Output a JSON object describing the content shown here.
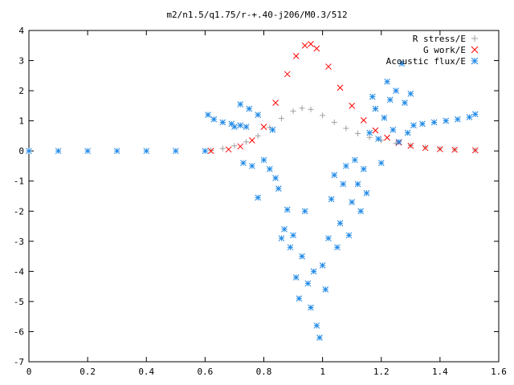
{
  "chart_data": {
    "type": "scatter",
    "title": "m2/n1.5/q1.75/r-+.40-j206/M0.3/512",
    "xlabel": "",
    "ylabel": "",
    "xlim": [
      0,
      1.6
    ],
    "ylim": [
      -7,
      4
    ],
    "grid": false,
    "legend_position": "top-right",
    "x_ticks": [
      "0",
      "0.2",
      "0.4",
      "0.6",
      "0.8",
      "1",
      "1.2",
      "1.4",
      "1.6"
    ],
    "y_ticks": [
      "4",
      "3",
      "2",
      "1",
      "0",
      "-1",
      "-2",
      "-3",
      "-4",
      "-5",
      "-6",
      "-7"
    ],
    "series": [
      {
        "name": "R stress/E",
        "marker": "plus",
        "color": "#a0a0a0",
        "points": [
          [
            0.62,
            0.02
          ],
          [
            0.66,
            0.08
          ],
          [
            0.7,
            0.17
          ],
          [
            0.74,
            0.3
          ],
          [
            0.78,
            0.5
          ],
          [
            0.82,
            0.78
          ],
          [
            0.86,
            1.08
          ],
          [
            0.9,
            1.32
          ],
          [
            0.93,
            1.42
          ],
          [
            0.96,
            1.38
          ],
          [
            1.0,
            1.18
          ],
          [
            1.04,
            0.95
          ],
          [
            1.08,
            0.75
          ],
          [
            1.12,
            0.58
          ],
          [
            1.16,
            0.45
          ],
          [
            1.2,
            0.35
          ],
          [
            1.25,
            0.25
          ],
          [
            1.3,
            0.18
          ],
          [
            1.35,
            0.12
          ],
          [
            1.4,
            0.08
          ],
          [
            1.45,
            0.05
          ],
          [
            1.52,
            0.03
          ]
        ]
      },
      {
        "name": "G work/E",
        "marker": "cross",
        "color": "#ff0000",
        "points": [
          [
            0.62,
            0.0
          ],
          [
            0.68,
            0.05
          ],
          [
            0.72,
            0.15
          ],
          [
            0.76,
            0.35
          ],
          [
            0.8,
            0.8
          ],
          [
            0.84,
            1.6
          ],
          [
            0.88,
            2.55
          ],
          [
            0.91,
            3.15
          ],
          [
            0.94,
            3.5
          ],
          [
            0.96,
            3.55
          ],
          [
            0.98,
            3.4
          ],
          [
            1.02,
            2.8
          ],
          [
            1.06,
            2.1
          ],
          [
            1.1,
            1.5
          ],
          [
            1.14,
            1.02
          ],
          [
            1.18,
            0.68
          ],
          [
            1.22,
            0.44
          ],
          [
            1.26,
            0.28
          ],
          [
            1.3,
            0.17
          ],
          [
            1.35,
            0.1
          ],
          [
            1.4,
            0.06
          ],
          [
            1.45,
            0.04
          ],
          [
            1.52,
            0.02
          ]
        ]
      },
      {
        "name": "Acoustic flux/E",
        "marker": "star",
        "color": "#1e88e5",
        "points": [
          [
            0.0,
            0.0
          ],
          [
            0.1,
            0.0
          ],
          [
            0.2,
            0.0
          ],
          [
            0.3,
            0.0
          ],
          [
            0.4,
            0.0
          ],
          [
            0.5,
            0.0
          ],
          [
            0.6,
            0.0
          ],
          [
            0.61,
            1.2
          ],
          [
            0.63,
            1.05
          ],
          [
            0.66,
            0.95
          ],
          [
            0.69,
            0.9
          ],
          [
            0.72,
            0.85
          ],
          [
            0.74,
            0.8
          ],
          [
            0.72,
            1.55
          ],
          [
            0.75,
            1.4
          ],
          [
            0.78,
            1.2
          ],
          [
            0.7,
            0.8
          ],
          [
            0.73,
            -0.4
          ],
          [
            0.76,
            -0.5
          ],
          [
            0.78,
            -1.55
          ],
          [
            0.8,
            -0.3
          ],
          [
            0.82,
            -0.6
          ],
          [
            0.83,
            0.7
          ],
          [
            0.84,
            -0.9
          ],
          [
            0.85,
            -1.25
          ],
          [
            0.86,
            -2.9
          ],
          [
            0.87,
            -2.6
          ],
          [
            0.88,
            -1.95
          ],
          [
            0.89,
            -3.2
          ],
          [
            0.9,
            -2.8
          ],
          [
            0.91,
            -4.2
          ],
          [
            0.92,
            -4.9
          ],
          [
            0.93,
            -3.5
          ],
          [
            0.94,
            -2.0
          ],
          [
            0.95,
            -4.4
          ],
          [
            0.96,
            -5.2
          ],
          [
            0.97,
            -4.0
          ],
          [
            0.98,
            -5.8
          ],
          [
            0.99,
            -6.2
          ],
          [
            1.0,
            -3.8
          ],
          [
            1.01,
            -4.6
          ],
          [
            1.02,
            -2.9
          ],
          [
            1.03,
            -1.6
          ],
          [
            1.04,
            -0.8
          ],
          [
            1.05,
            -3.2
          ],
          [
            1.06,
            -2.4
          ],
          [
            1.07,
            -1.1
          ],
          [
            1.08,
            -0.5
          ],
          [
            1.09,
            -2.8
          ],
          [
            1.1,
            -1.7
          ],
          [
            1.11,
            -0.3
          ],
          [
            1.12,
            -1.1
          ],
          [
            1.13,
            -2.0
          ],
          [
            1.14,
            -0.6
          ],
          [
            1.15,
            -1.4
          ],
          [
            1.16,
            0.6
          ],
          [
            1.17,
            1.8
          ],
          [
            1.18,
            1.4
          ],
          [
            1.19,
            0.4
          ],
          [
            1.2,
            -0.4
          ],
          [
            1.21,
            1.1
          ],
          [
            1.22,
            2.3
          ],
          [
            1.23,
            1.7
          ],
          [
            1.24,
            0.7
          ],
          [
            1.25,
            2.0
          ],
          [
            1.26,
            0.3
          ],
          [
            1.27,
            2.9
          ],
          [
            1.28,
            1.6
          ],
          [
            1.29,
            0.6
          ],
          [
            1.3,
            1.9
          ],
          [
            1.31,
            0.85
          ],
          [
            1.34,
            0.9
          ],
          [
            1.38,
            0.95
          ],
          [
            1.42,
            1.0
          ],
          [
            1.46,
            1.05
          ],
          [
            1.5,
            1.12
          ],
          [
            1.52,
            1.22
          ]
        ]
      }
    ]
  }
}
